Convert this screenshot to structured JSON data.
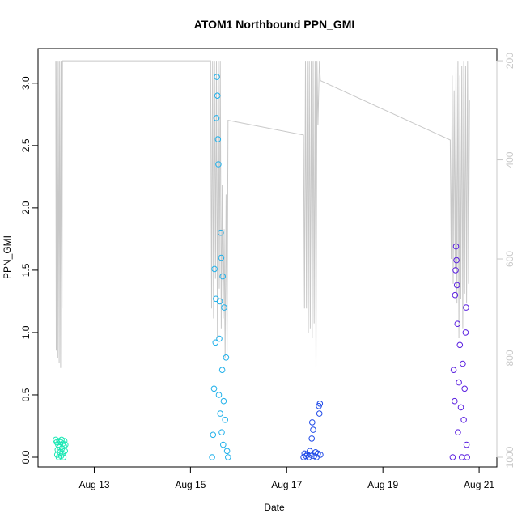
{
  "chart_data": {
    "type": "scatter",
    "title": "ATOM1 Northbound PPN_GMI",
    "xlabel": "Date",
    "ylabel": "PPN_GMI",
    "x_unit": "days in August",
    "xlim": [
      12.05,
      21.15
    ],
    "ylim": [
      0.0,
      3.2
    ],
    "x_ticks": [
      13,
      15,
      17,
      19,
      21
    ],
    "x_tick_labels": [
      "Aug 13",
      "Aug 15",
      "Aug 17",
      "Aug 19",
      "Aug 21"
    ],
    "y_ticks": [
      0.0,
      0.5,
      1.0,
      1.5,
      2.0,
      2.5,
      3.0
    ],
    "y_tick_labels": [
      "0.0",
      "0.5",
      "1.0",
      "1.5",
      "2.0",
      "2.5",
      "3.0"
    ],
    "y2_ticks": [
      200,
      400,
      600,
      800,
      1000
    ],
    "y2_tick_labels": [
      "200",
      "400",
      "600",
      "800",
      "1000"
    ],
    "y2lim": [
      1000,
      195
    ],
    "y2_color": "#c8c8c8",
    "grid": false,
    "point_shape": "open-circle",
    "series": [
      {
        "color": "#1de8b5",
        "points": [
          [
            12.2,
            0.14
          ],
          [
            12.22,
            0.12
          ],
          [
            12.23,
            0.02
          ],
          [
            12.24,
            0.06
          ],
          [
            12.25,
            0.1
          ],
          [
            12.26,
            0.0
          ],
          [
            12.27,
            0.13
          ],
          [
            12.28,
            0.08
          ],
          [
            12.29,
            0.04
          ],
          [
            12.3,
            0.12
          ],
          [
            12.31,
            0.01
          ],
          [
            12.32,
            0.14
          ],
          [
            12.33,
            0.07
          ],
          [
            12.34,
            0.03
          ],
          [
            12.35,
            0.11
          ],
          [
            12.36,
            0.0
          ],
          [
            12.37,
            0.09
          ],
          [
            12.38,
            0.13
          ],
          [
            12.39,
            0.05
          ],
          [
            12.4,
            0.1
          ]
        ]
      },
      {
        "color": "#1fb0ea",
        "points": [
          [
            15.45,
            0.0
          ],
          [
            15.47,
            0.18
          ],
          [
            15.49,
            0.55
          ],
          [
            15.5,
            1.51
          ],
          [
            15.52,
            0.92
          ],
          [
            15.53,
            1.27
          ],
          [
            15.54,
            2.72
          ],
          [
            15.55,
            3.05
          ],
          [
            15.56,
            2.9
          ],
          [
            15.57,
            2.55
          ],
          [
            15.58,
            2.35
          ],
          [
            15.59,
            0.5
          ],
          [
            15.6,
            0.95
          ],
          [
            15.61,
            1.25
          ],
          [
            15.62,
            0.35
          ],
          [
            15.63,
            1.8
          ],
          [
            15.64,
            1.6
          ],
          [
            15.65,
            0.2
          ],
          [
            15.66,
            0.7
          ],
          [
            15.67,
            1.45
          ],
          [
            15.68,
            0.1
          ],
          [
            15.69,
            0.45
          ],
          [
            15.7,
            1.2
          ],
          [
            15.72,
            0.3
          ],
          [
            15.74,
            0.8
          ],
          [
            15.76,
            0.05
          ],
          [
            15.78,
            0.0
          ]
        ]
      },
      {
        "color": "#1f4ae8",
        "points": [
          [
            17.35,
            0.0
          ],
          [
            17.37,
            0.03
          ],
          [
            17.4,
            0.01
          ],
          [
            17.43,
            0.02
          ],
          [
            17.46,
            0.0
          ],
          [
            17.48,
            0.05
          ],
          [
            17.5,
            0.02
          ],
          [
            17.52,
            0.15
          ],
          [
            17.53,
            0.28
          ],
          [
            17.55,
            0.22
          ],
          [
            17.57,
            0.01
          ],
          [
            17.6,
            0.04
          ],
          [
            17.62,
            0.0
          ],
          [
            17.65,
            0.03
          ],
          [
            17.67,
            0.41
          ],
          [
            17.68,
            0.35
          ],
          [
            17.69,
            0.43
          ],
          [
            17.7,
            0.02
          ]
        ]
      },
      {
        "color": "#5a1fe0",
        "points": [
          [
            20.45,
            0.0
          ],
          [
            20.47,
            0.7
          ],
          [
            20.49,
            0.45
          ],
          [
            20.5,
            1.3
          ],
          [
            20.51,
            1.5
          ],
          [
            20.52,
            1.69
          ],
          [
            20.53,
            1.58
          ],
          [
            20.54,
            1.38
          ],
          [
            20.55,
            1.07
          ],
          [
            20.56,
            0.2
          ],
          [
            20.58,
            0.6
          ],
          [
            20.6,
            0.9
          ],
          [
            20.62,
            0.4
          ],
          [
            20.64,
            0.0
          ],
          [
            20.66,
            0.75
          ],
          [
            20.68,
            0.3
          ],
          [
            20.7,
            0.55
          ],
          [
            20.72,
            1.0
          ],
          [
            20.73,
            1.2
          ],
          [
            20.74,
            0.1
          ],
          [
            20.75,
            0.0
          ]
        ]
      }
    ],
    "depth_trace": {
      "color": "#c8c8c8",
      "points": [
        [
          12.2,
          200
        ],
        [
          12.21,
          785
        ],
        [
          12.22,
          200
        ],
        [
          12.24,
          800
        ],
        [
          12.25,
          200
        ],
        [
          12.27,
          810
        ],
        [
          12.28,
          200
        ],
        [
          12.3,
          820
        ],
        [
          12.31,
          200
        ],
        [
          12.33,
          700
        ],
        [
          12.34,
          200
        ],
        [
          15.42,
          200
        ],
        [
          15.44,
          700
        ],
        [
          15.46,
          200
        ],
        [
          15.48,
          720
        ],
        [
          15.5,
          200
        ],
        [
          15.52,
          640
        ],
        [
          15.54,
          200
        ],
        [
          15.56,
          760
        ],
        [
          15.58,
          200
        ],
        [
          15.6,
          660
        ],
        [
          15.62,
          200
        ],
        [
          15.64,
          740
        ],
        [
          15.66,
          450
        ],
        [
          15.68,
          720
        ],
        [
          15.7,
          540
        ],
        [
          15.72,
          800
        ],
        [
          15.74,
          470
        ],
        [
          15.76,
          790
        ],
        [
          15.78,
          320
        ],
        [
          17.35,
          350
        ],
        [
          17.37,
          700
        ],
        [
          17.39,
          200
        ],
        [
          17.41,
          700
        ],
        [
          17.43,
          200
        ],
        [
          17.45,
          750
        ],
        [
          17.47,
          200
        ],
        [
          17.49,
          740
        ],
        [
          17.51,
          200
        ],
        [
          17.53,
          760
        ],
        [
          17.55,
          200
        ],
        [
          17.57,
          730
        ],
        [
          17.59,
          200
        ],
        [
          17.61,
          820
        ],
        [
          17.63,
          200
        ],
        [
          17.65,
          330
        ],
        [
          17.68,
          200
        ],
        [
          17.7,
          240
        ],
        [
          20.4,
          360
        ],
        [
          20.42,
          600
        ],
        [
          20.44,
          230
        ],
        [
          20.46,
          650
        ],
        [
          20.48,
          260
        ],
        [
          20.5,
          620
        ],
        [
          20.52,
          210
        ],
        [
          20.54,
          690
        ],
        [
          20.56,
          200
        ],
        [
          20.58,
          760
        ],
        [
          20.6,
          230
        ],
        [
          20.62,
          680
        ],
        [
          20.64,
          210
        ],
        [
          20.66,
          740
        ],
        [
          20.68,
          200
        ],
        [
          20.7,
          670
        ],
        [
          20.72,
          210
        ],
        [
          20.74,
          690
        ],
        [
          20.76,
          200
        ],
        [
          20.78,
          650
        ],
        [
          20.8,
          280
        ]
      ]
    }
  }
}
